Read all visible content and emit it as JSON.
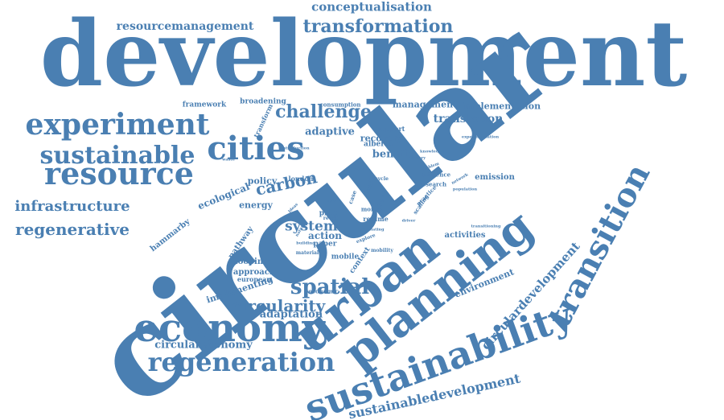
{
  "colors": {
    "word": "#4a7fb2",
    "background": "#ffffff"
  },
  "words": [
    {
      "id": "development",
      "text": "development",
      "weight": 100
    },
    {
      "id": "circular",
      "text": "circular",
      "weight": 98
    },
    {
      "id": "urban",
      "text": "urban",
      "weight": 45
    },
    {
      "id": "planning",
      "text": "planning",
      "weight": 42
    },
    {
      "id": "sustainability",
      "text": "sustainability",
      "weight": 40
    },
    {
      "id": "economy",
      "text": "economy",
      "weight": 36
    },
    {
      "id": "cities",
      "text": "cities",
      "weight": 32
    },
    {
      "id": "resource",
      "text": "resource",
      "weight": 30
    },
    {
      "id": "sustainable",
      "text": "sustainable",
      "weight": 26
    },
    {
      "id": "experiment",
      "text": "experiment",
      "weight": 26
    },
    {
      "id": "transition",
      "text": "transition",
      "weight": 26
    },
    {
      "id": "regeneration",
      "text": "regeneration",
      "weight": 25
    },
    {
      "id": "transformation",
      "text": "transformation",
      "weight": 20
    },
    {
      "id": "spatial",
      "text": "spatial",
      "weight": 19
    },
    {
      "id": "challenge",
      "text": "challenge",
      "weight": 18
    },
    {
      "id": "infrastructure",
      "text": "infrastructure",
      "weight": 16
    },
    {
      "id": "regenerative",
      "text": "regenerative",
      "weight": 16
    },
    {
      "id": "circularity",
      "text": "circularity",
      "weight": 15
    },
    {
      "id": "carbon",
      "text": "carbon",
      "weight": 14
    },
    {
      "id": "system",
      "text": "system",
      "weight": 13
    },
    {
      "id": "sustainabledevelopment",
      "text": "sustainabledevelopment",
      "weight": 12
    },
    {
      "id": "circulardevelopment",
      "text": "circulardevelopment",
      "weight": 12
    },
    {
      "id": "conceptualisation",
      "text": "conceptualisation",
      "weight": 12
    },
    {
      "id": "resourcemanagement",
      "text": "resourcemanagement",
      "weight": 12
    },
    {
      "id": "translation",
      "text": "translation",
      "weight": 12
    },
    {
      "id": "adaptive",
      "text": "adaptive",
      "weight": 11
    },
    {
      "id": "benefit",
      "text": "benefit",
      "weight": 11
    },
    {
      "id": "circulareconomy",
      "text": "circulareconomy",
      "weight": 11
    },
    {
      "id": "adaptation",
      "text": "adaptation",
      "weight": 10
    },
    {
      "id": "action",
      "text": "action",
      "weight": 10
    },
    {
      "id": "management",
      "text": "management",
      "weight": 10
    },
    {
      "id": "implementation",
      "text": "implementation",
      "weight": 9
    },
    {
      "id": "ecological",
      "text": "ecological",
      "weight": 9
    },
    {
      "id": "policy",
      "text": "policy",
      "weight": 9
    },
    {
      "id": "energy",
      "text": "energy",
      "weight": 8
    },
    {
      "id": "recovery",
      "text": "recovery",
      "weight": 8
    },
    {
      "id": "hammarby",
      "text": "hammarby",
      "weight": 8
    },
    {
      "id": "pathway",
      "text": "pathway",
      "weight": 8
    },
    {
      "id": "environment",
      "text": "environment",
      "weight": 8
    },
    {
      "id": "implementing",
      "text": "implementing",
      "weight": 8
    },
    {
      "id": "looping",
      "text": "looping",
      "weight": 8
    },
    {
      "id": "approach",
      "text": "approach",
      "weight": 8
    },
    {
      "id": "activities",
      "text": "activities",
      "weight": 7
    },
    {
      "id": "emission",
      "text": "emission",
      "weight": 7
    },
    {
      "id": "context",
      "text": "context",
      "weight": 7
    },
    {
      "id": "framework",
      "text": "framework",
      "weight": 7
    },
    {
      "id": "broadening",
      "text": "broadening",
      "weight": 7
    },
    {
      "id": "transform",
      "text": "transform",
      "weight": 6
    },
    {
      "id": "alberta",
      "text": "alberta",
      "weight": 6
    },
    {
      "id": "london",
      "text": "london",
      "weight": 6
    },
    {
      "id": "paper",
      "text": "paper",
      "weight": 6
    },
    {
      "id": "proc",
      "text": "proc",
      "weight": 6
    },
    {
      "id": "mobile",
      "text": "mobile",
      "weight": 6
    },
    {
      "id": "european",
      "text": "european",
      "weight": 6
    },
    {
      "id": "regime",
      "text": "regime",
      "weight": 6
    },
    {
      "id": "support",
      "text": "support",
      "weight": 6
    },
    {
      "id": "influence",
      "text": "influence",
      "weight": 5
    },
    {
      "id": "research",
      "text": "research",
      "weight": 5
    },
    {
      "id": "global",
      "text": "global",
      "weight": 5
    },
    {
      "id": "land",
      "text": "land",
      "weight": 5
    },
    {
      "id": "case",
      "text": "case",
      "weight": 5
    },
    {
      "id": "more",
      "text": "more",
      "weight": 5
    },
    {
      "id": "scaling",
      "text": "scaling",
      "weight": 5
    },
    {
      "id": "practice",
      "text": "practice",
      "weight": 5
    },
    {
      "id": "consumption",
      "text": "consumption",
      "weight": 5
    },
    {
      "id": "economic",
      "text": "economic",
      "weight": 5
    },
    {
      "id": "material",
      "text": "material",
      "weight": 4
    },
    {
      "id": "mobility",
      "text": "mobility",
      "weight": 4
    },
    {
      "id": "explore",
      "text": "explore",
      "weight": 4
    },
    {
      "id": "recycle",
      "text": "recycle",
      "weight": 4
    },
    {
      "id": "reuse",
      "text": "reuse",
      "weight": 4
    },
    {
      "id": "introduction",
      "text": "introduction",
      "weight": 4
    },
    {
      "id": "theory",
      "text": "theory",
      "weight": 4
    },
    {
      "id": "problem",
      "text": "problem",
      "weight": 4
    },
    {
      "id": "transitioning",
      "text": "transitioning",
      "weight": 4
    },
    {
      "id": "experimentation",
      "text": "experimentation",
      "weight": 4
    },
    {
      "id": "translating",
      "text": "translating",
      "weight": 4
    },
    {
      "id": "population",
      "text": "population",
      "weight": 3
    },
    {
      "id": "retrofit",
      "text": "retrofit",
      "weight": 3
    },
    {
      "id": "driver",
      "text": "driver",
      "weight": 3
    },
    {
      "id": "plan",
      "text": "plan",
      "weight": 3
    },
    {
      "id": "ideas",
      "text": "ideas",
      "weight": 3
    },
    {
      "id": "nature",
      "text": "nature",
      "weight": 3
    },
    {
      "id": "knowledge",
      "text": "knowledge",
      "weight": 3
    },
    {
      "id": "waste",
      "text": "waste",
      "weight": 3
    },
    {
      "id": "building",
      "text": "building",
      "weight": 3
    },
    {
      "id": "network",
      "text": "network",
      "weight": 3
    }
  ]
}
